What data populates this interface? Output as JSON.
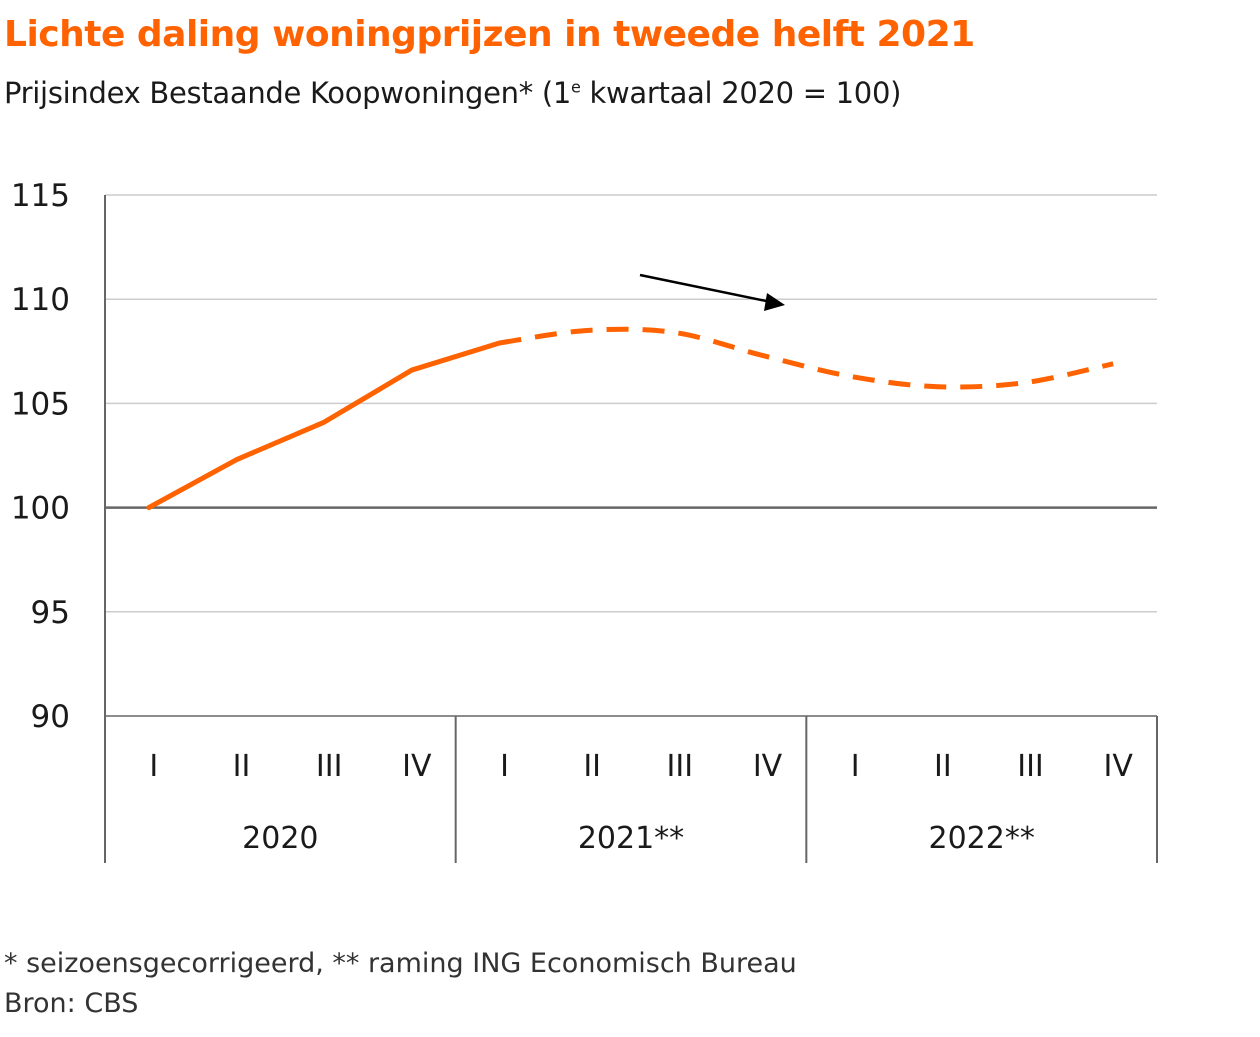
{
  "title": "Lichte daling woningprijzen in tweede helft 2021",
  "subtitle": {
    "prefix": "Prijsindex Bestaande Koopwoningen* (1",
    "sup": "e",
    "suffix": " kwartaal 2020 = 100)"
  },
  "footnotes": {
    "note": "* seizoensgecorrigeerd, ** raming ING Economisch Bureau",
    "source": "Bron: CBS"
  },
  "colors": {
    "series": "#FF6200",
    "title": "#FF6200",
    "grid": "#cccccc",
    "axis": "#666666",
    "arrow": "#000000"
  },
  "chart_data": {
    "type": "line",
    "title": "Lichte daling woningprijzen in tweede helft 2021",
    "ylim": [
      90,
      115
    ],
    "yticks": [
      "115",
      "110",
      "105",
      "100",
      "95",
      "90"
    ],
    "ytick_values": [
      115,
      110,
      105,
      100,
      95,
      90
    ],
    "grid": true,
    "legend": "none",
    "categories": [
      "I",
      "II",
      "III",
      "IV",
      "I",
      "II",
      "III",
      "IV",
      "I",
      "II",
      "III",
      "IV"
    ],
    "groups": [
      {
        "label": "2020",
        "count": 4
      },
      {
        "label": "2021**",
        "count": 4
      },
      {
        "label": "2022**",
        "count": 4
      }
    ],
    "series": [
      {
        "values": [
          100.0,
          102.3,
          104.1,
          106.6,
          107.9,
          108.5,
          108.4,
          107.3,
          106.3,
          105.8,
          106.0,
          106.9
        ],
        "actual_count": 5,
        "style_actual": "solid",
        "style_forecast": "dashed"
      }
    ],
    "annotations": [
      {
        "type": "arrow",
        "direction": "down-right"
      }
    ]
  }
}
